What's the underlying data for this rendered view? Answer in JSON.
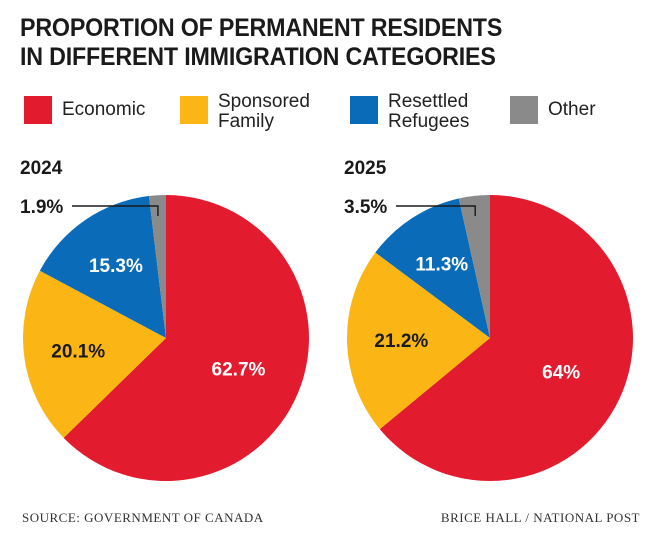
{
  "title": {
    "line1": "PROPORTION OF PERMANENT RESIDENTS",
    "line2": "IN DIFFERENT IMMIGRATION CATEGORIES"
  },
  "legend": [
    {
      "label": "Economic",
      "color": "#e31b2f"
    },
    {
      "label": "Sponsored\nFamily",
      "color": "#fbb615"
    },
    {
      "label": "Resettled\nRefugees",
      "color": "#0a6cb8"
    },
    {
      "label": "Other",
      "color": "#8a8a8a"
    }
  ],
  "chart_data": [
    {
      "type": "pie",
      "title": "2024",
      "categories": [
        "Economic",
        "Sponsored Family",
        "Resettled Refugees",
        "Other"
      ],
      "values": [
        62.7,
        20.1,
        15.3,
        1.9
      ],
      "labels": [
        "62.7%",
        "20.1%",
        "15.3%",
        "1.9%"
      ],
      "colors": [
        "#e31b2f",
        "#fbb615",
        "#0a6cb8",
        "#8a8a8a"
      ],
      "legend": "top"
    },
    {
      "type": "pie",
      "title": "2025",
      "categories": [
        "Economic",
        "Sponsored Family",
        "Resettled Refugees",
        "Other"
      ],
      "values": [
        64.0,
        21.2,
        11.3,
        3.5
      ],
      "labels": [
        "64%",
        "21.2%",
        "11.3%",
        "3.5%"
      ],
      "colors": [
        "#e31b2f",
        "#fbb615",
        "#0a6cb8",
        "#8a8a8a"
      ],
      "legend": "top"
    }
  ],
  "footer": {
    "source": "SOURCE: GOVERNMENT OF CANADA",
    "credit": "BRICE HALL  / NATIONAL POST"
  }
}
